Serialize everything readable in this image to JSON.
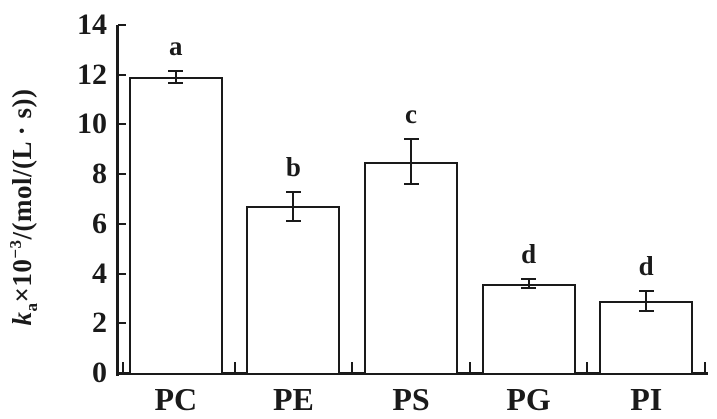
{
  "figure": {
    "background": "#ffffff",
    "ink_color": "#1a1a1a"
  },
  "y_axis_label": {
    "k": "k",
    "k_sub": "a",
    "times": "×10",
    "exponent": "−3",
    "unit": "/(mol/(L · s))"
  },
  "chart_data": {
    "type": "bar",
    "title": "",
    "xlabel": "",
    "ylabel": "ka×10−3/(mol/(L · s))",
    "categories": [
      "PC",
      "PE",
      "PS",
      "PG",
      "PI"
    ],
    "values": [
      11.9,
      6.7,
      8.5,
      3.6,
      2.9
    ],
    "error_bars": [
      0.25,
      0.6,
      0.9,
      0.2,
      0.4
    ],
    "significance_letters": [
      "a",
      "b",
      "c",
      "d",
      "d"
    ],
    "ylim": [
      0,
      14
    ],
    "yticks": [
      0,
      2,
      4,
      6,
      8,
      10,
      12,
      14
    ],
    "grid": false,
    "legend": null,
    "bar_fill": "#ffffff",
    "bar_stroke": "#1a1a1a"
  }
}
